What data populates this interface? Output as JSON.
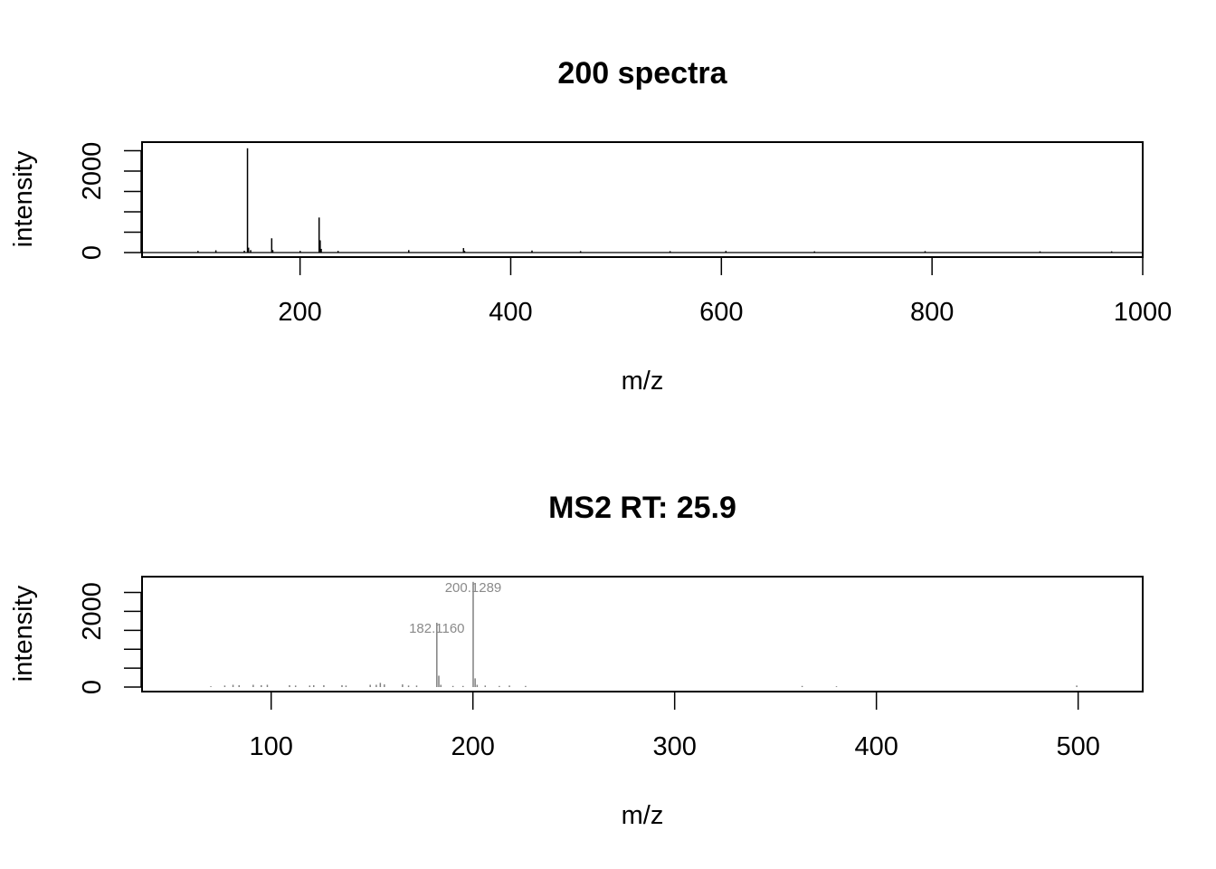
{
  "chart_data": [
    {
      "type": "bar",
      "title": "200 spectra",
      "xlabel": "m/z",
      "ylabel": "intensity",
      "xlim": [
        50,
        1000
      ],
      "ylim": [
        0,
        2600
      ],
      "xticks": [
        200,
        400,
        600,
        800,
        1000
      ],
      "yticks": [
        0,
        2000
      ],
      "yminor": [
        500,
        1000,
        1500,
        2500
      ],
      "bar_color": "#000000",
      "peaks": [
        {
          "mz": 103.1,
          "intensity": 40
        },
        {
          "mz": 120.1,
          "intensity": 55
        },
        {
          "mz": 147.1,
          "intensity": 45
        },
        {
          "mz": 150.1,
          "intensity": 2560
        },
        {
          "mz": 151.1,
          "intensity": 120
        },
        {
          "mz": 153.1,
          "intensity": 60
        },
        {
          "mz": 173.1,
          "intensity": 350
        },
        {
          "mz": 174.1,
          "intensity": 60
        },
        {
          "mz": 200.1,
          "intensity": 40
        },
        {
          "mz": 218.1,
          "intensity": 860
        },
        {
          "mz": 219.1,
          "intensity": 300
        },
        {
          "mz": 220.1,
          "intensity": 90
        },
        {
          "mz": 236.1,
          "intensity": 40
        },
        {
          "mz": 303.2,
          "intensity": 60
        },
        {
          "mz": 355.2,
          "intensity": 110
        },
        {
          "mz": 356.2,
          "intensity": 40
        },
        {
          "mz": 420.2,
          "intensity": 50
        },
        {
          "mz": 466.3,
          "intensity": 35
        },
        {
          "mz": 551.3,
          "intensity": 35
        },
        {
          "mz": 604.3,
          "intensity": 40
        },
        {
          "mz": 688.4,
          "intensity": 30
        },
        {
          "mz": 793.4,
          "intensity": 35
        },
        {
          "mz": 902.5,
          "intensity": 30
        },
        {
          "mz": 970.5,
          "intensity": 30
        }
      ]
    },
    {
      "type": "bar",
      "title": "MS2 RT: 25.9",
      "xlabel": "m/z",
      "ylabel": "intensity",
      "xlim": [
        36,
        532
      ],
      "ylim": [
        0,
        2800
      ],
      "xticks": [
        100,
        200,
        300,
        400,
        500
      ],
      "yticks": [
        0,
        2000
      ],
      "yminor": [
        500,
        1000,
        1500,
        2500
      ],
      "bar_color": "#808080",
      "peaks": [
        {
          "mz": 70.1,
          "intensity": 20
        },
        {
          "mz": 77.0,
          "intensity": 40
        },
        {
          "mz": 81.1,
          "intensity": 60
        },
        {
          "mz": 84.1,
          "intensity": 50
        },
        {
          "mz": 91.1,
          "intensity": 60
        },
        {
          "mz": 95.1,
          "intensity": 50
        },
        {
          "mz": 98.1,
          "intensity": 60
        },
        {
          "mz": 109.1,
          "intensity": 50
        },
        {
          "mz": 112.1,
          "intensity": 40
        },
        {
          "mz": 119.1,
          "intensity": 40
        },
        {
          "mz": 121.1,
          "intensity": 50
        },
        {
          "mz": 126.1,
          "intensity": 50
        },
        {
          "mz": 135.1,
          "intensity": 50
        },
        {
          "mz": 137.1,
          "intensity": 40
        },
        {
          "mz": 149.1,
          "intensity": 60
        },
        {
          "mz": 152.1,
          "intensity": 60
        },
        {
          "mz": 154.1,
          "intensity": 110
        },
        {
          "mz": 156.1,
          "intensity": 70
        },
        {
          "mz": 165.1,
          "intensity": 70
        },
        {
          "mz": 168.1,
          "intensity": 40
        },
        {
          "mz": 172.1,
          "intensity": 40
        },
        {
          "mz": 182.116,
          "intensity": 1700,
          "label": "182.1160"
        },
        {
          "mz": 183.1,
          "intensity": 300
        },
        {
          "mz": 184.1,
          "intensity": 60
        },
        {
          "mz": 190.1,
          "intensity": 30
        },
        {
          "mz": 195.1,
          "intensity": 30
        },
        {
          "mz": 200.1289,
          "intensity": 2780,
          "label": "200.1289"
        },
        {
          "mz": 201.1,
          "intensity": 230
        },
        {
          "mz": 202.1,
          "intensity": 60
        },
        {
          "mz": 206.1,
          "intensity": 40
        },
        {
          "mz": 213.1,
          "intensity": 30
        },
        {
          "mz": 218.1,
          "intensity": 40
        },
        {
          "mz": 226.1,
          "intensity": 30
        },
        {
          "mz": 363.2,
          "intensity": 30
        },
        {
          "mz": 380.2,
          "intensity": 20
        },
        {
          "mz": 499.3,
          "intensity": 40
        }
      ]
    }
  ]
}
